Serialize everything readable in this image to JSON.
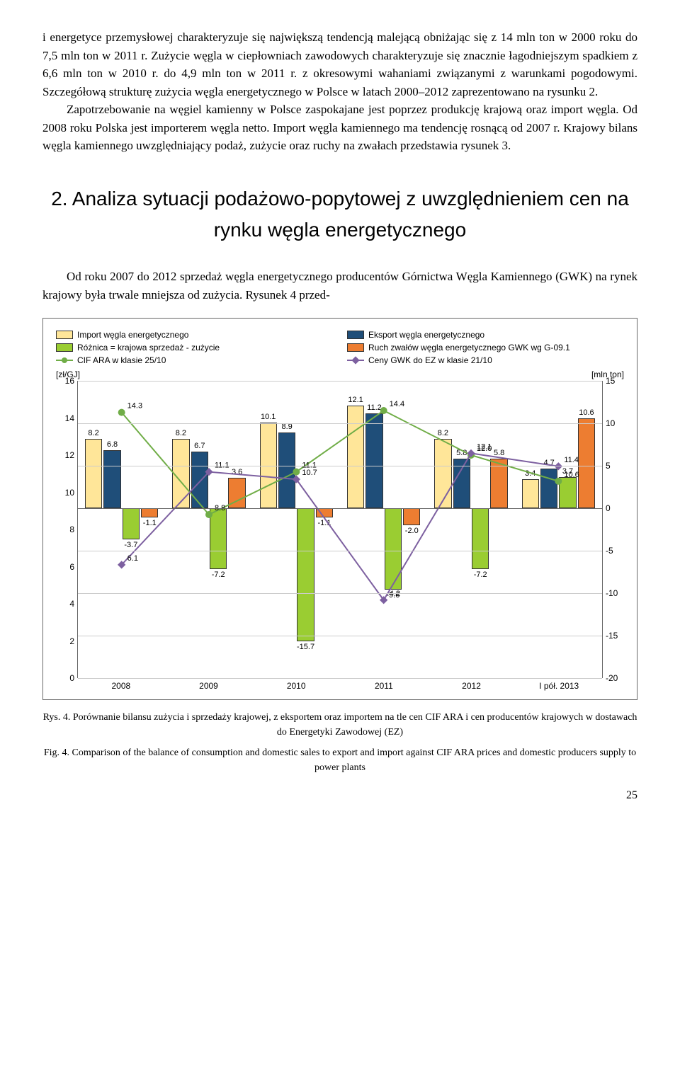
{
  "paragraphs": {
    "p1": "i energetyce przemysłowej charakteryzuje się największą tendencją malejącą obniżając się z 14 mln ton w 2000 roku do 7,5 mln ton w 2011 r. Zużycie węgla w ciepłowniach zawodowych charakteryzuje się znacznie łagodniejszym spadkiem z 6,6 mln ton w 2010 r. do 4,9 mln ton w 2011 r. z okresowymi wahaniami związanymi z warunkami pogodowymi. Szczegółową strukturę zużycia węgla energetycznego w Polsce w latach 2000–2012 zaprezentowano na rysunku 2.",
    "p2": "Zapotrzebowanie na węgiel kamienny w Polsce zaspokajane jest poprzez produkcję krajową oraz import węgla. Od 2008 roku Polska jest importerem węgla netto. Import węgla kamiennego ma tendencję rosnącą od 2007 r. Krajowy bilans węgla kamiennego uwzględniający podaż, zużycie oraz ruchy na zwałach przedstawia rysunek 3."
  },
  "section_title": "2. Analiza sytuacji podażowo-popytowej z uwzględnieniem cen na rynku węgla energetycznego",
  "section_intro": "Od roku 2007 do 2012 sprzedaż węgla energetycznego producentów Górnictwa Węgla Kamiennego (GWK) na rynek krajowy była trwale mniejsza od zużycia. Rysunek 4 przed-",
  "chart": {
    "legend": {
      "import": "Import węgla energetycznego",
      "eksport": "Eksport węgla energetycznego",
      "roznica": "Różnica = krajowa sprzedaż - zużycie",
      "ruch": "Ruch zwałów węgla energetycznego GWK wg G-09.1",
      "cif": "CIF ARA w klasie 25/10",
      "ceny": "Ceny GWK do EZ w klasie 21/10"
    },
    "colors": {
      "import": "#ffe699",
      "eksport": "#1f4e79",
      "roznica": "#9acd32",
      "ruch": "#ed7d31",
      "cif": "#70ad47",
      "ceny": "#7d60a0"
    },
    "y_left": {
      "label": "[zł/GJ]",
      "min": 0,
      "max": 16,
      "step": 2
    },
    "y_right": {
      "label": "[mln ton]",
      "min": -20,
      "max": 15,
      "step": 5
    },
    "categories": [
      "2008",
      "2009",
      "2010",
      "2011",
      "2012",
      "I pół. 2013"
    ],
    "bars": {
      "import": [
        8.2,
        8.2,
        10.1,
        12.1,
        8.2,
        3.4
      ],
      "eksport": [
        6.8,
        6.7,
        8.9,
        11.2,
        5.8,
        4.7
      ],
      "roznica": [
        -3.7,
        -7.2,
        -15.7,
        -9.6,
        -7.2,
        3.7
      ],
      "ruch": [
        -1.1,
        3.6,
        -1.1,
        -2.0,
        5.8,
        10.6
      ]
    },
    "extra_bar_labels": {
      "2008_6.1": "6.1",
      "2009_11.1": "11.1",
      "2010_11.1": "11.1",
      "2010_10.7": "10.7",
      "2011_14.4": "14.4",
      "2011_4.2": "4.2",
      "2012_12.1": "12.1",
      "2012_12.0": "12.0",
      "2013_11.4": "11.4"
    },
    "lines": {
      "cif": [
        14.3,
        8.8,
        11.1,
        14.4,
        12.0,
        10.6
      ],
      "ceny": [
        6.1,
        11.1,
        10.7,
        4.2,
        12.1,
        11.4
      ]
    }
  },
  "caption": {
    "pl": "Rys. 4. Porównanie bilansu zużycia i sprzedaży krajowej, z eksportem oraz importem na tle cen CIF ARA i cen producentów krajowych w dostawach do Energetyki Zawodowej (EZ)",
    "en": "Fig. 4. Comparison of the balance of consumption and domestic sales to export and import against CIF ARA prices and domestic producers supply to power plants"
  },
  "page": "25"
}
